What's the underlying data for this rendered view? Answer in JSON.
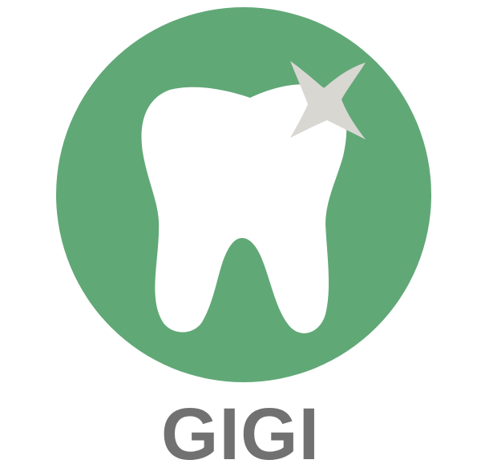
{
  "logo": {
    "icon": "tooth-sparkle-icon",
    "colors": {
      "circle": "#61a877",
      "tooth": "#ffffff",
      "sparkle": "#d8d7d2",
      "text": "#717171"
    }
  },
  "brand": {
    "name": "GIGI"
  }
}
